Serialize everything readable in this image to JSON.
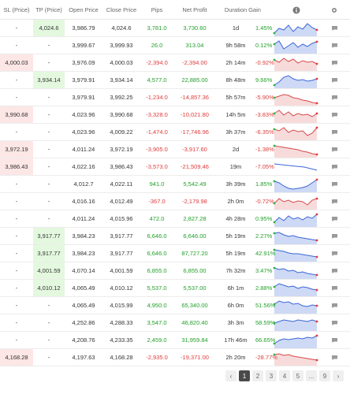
{
  "header": {
    "sl": "SL (Price)",
    "tp": "TP (Price)",
    "open": "Open Price",
    "close": "Close Price",
    "pips": "Pips",
    "net_profit": "Net Profit",
    "duration": "Duration",
    "gain": "Gain",
    "info_icon": "info-icon",
    "settings_icon": "gear-icon"
  },
  "colors": {
    "positive": "#22a02a",
    "negative": "#e03b3b",
    "sl_highlight": "#fde6e6",
    "tp_highlight": "#e3f8de",
    "spark_up": "#3b66d6",
    "spark_down": "#d64a4a"
  },
  "rows": [
    {
      "sl": "-",
      "tp": "4,024.6",
      "open": "3,986.79",
      "close": "4,024.6",
      "pips": "3,781.0",
      "np": "3,730.60",
      "dur": "1d",
      "gain": "1.45%",
      "positive": true,
      "tp_hl": true,
      "sl_hl": false,
      "spark": [
        4,
        10,
        8,
        14,
        6,
        12,
        9,
        16,
        11,
        8
      ]
    },
    {
      "sl": "-",
      "tp": "-",
      "open": "3,999.67",
      "close": "3,999.93",
      "pips": "26.0",
      "np": "313.04",
      "dur": "9h 58m",
      "gain": "0.12%",
      "positive": true,
      "tp_hl": false,
      "sl_hl": false,
      "spark": [
        12,
        16,
        6,
        10,
        14,
        8,
        12,
        9,
        13,
        15
      ]
    },
    {
      "sl": "4,000.03",
      "tp": "-",
      "open": "3,976.09",
      "close": "4,000.03",
      "pips": "-2,394.0",
      "np": "-2,394.00",
      "dur": "2h 14m",
      "gain": "-0.92%",
      "positive": false,
      "tp_hl": false,
      "sl_hl": true,
      "spark": [
        14,
        11,
        16,
        12,
        15,
        10,
        13,
        11,
        12,
        9
      ]
    },
    {
      "sl": "-",
      "tp": "3,934.14",
      "open": "3,979.91",
      "close": "3,934.14",
      "pips": "4,577.0",
      "np": "22,885.00",
      "dur": "8h 48m",
      "gain": "9.66%",
      "positive": true,
      "tp_hl": true,
      "sl_hl": false,
      "spark": [
        4,
        8,
        14,
        16,
        12,
        10,
        11,
        9,
        10,
        12
      ]
    },
    {
      "sl": "-",
      "tp": "-",
      "open": "3,979.91",
      "close": "3,992.25",
      "pips": "-1,234.0",
      "np": "-14,857.36",
      "dur": "5h 57m",
      "gain": "-5.90%",
      "positive": false,
      "tp_hl": false,
      "sl_hl": false,
      "spark": [
        10,
        12,
        14,
        13,
        10,
        9,
        7,
        6,
        4,
        3
      ]
    },
    {
      "sl": "3,990.68",
      "tp": "-",
      "open": "4,023.96",
      "close": "3,990.68",
      "pips": "-3,328.0",
      "np": "-10,021.80",
      "dur": "14h 5m",
      "gain": "-3.83%",
      "positive": false,
      "tp_hl": false,
      "sl_hl": true,
      "spark": [
        12,
        16,
        10,
        14,
        9,
        12,
        10,
        11,
        8,
        12
      ]
    },
    {
      "sl": "-",
      "tp": "-",
      "open": "4,023.96",
      "close": "4,009.22",
      "pips": "-1,474.0",
      "np": "-17,746.96",
      "dur": "3h 37m",
      "gain": "-6.35%",
      "positive": false,
      "tp_hl": false,
      "sl_hl": false,
      "spark": [
        14,
        12,
        16,
        10,
        13,
        11,
        12,
        6,
        9,
        16
      ]
    },
    {
      "sl": "3,972.19",
      "tp": "-",
      "open": "4,011.24",
      "close": "3,972.19",
      "pips": "-3,905.0",
      "np": "-3,917.60",
      "dur": "2d",
      "gain": "-1.38%",
      "positive": false,
      "tp_hl": false,
      "sl_hl": true,
      "spark": [
        15,
        14,
        13,
        12,
        11,
        10,
        8,
        7,
        5,
        4
      ]
    },
    {
      "sl": "3,986.43",
      "tp": "-",
      "open": "4,022.16",
      "close": "3,986.43",
      "pips": "-3,573.0",
      "np": "-21,509.46",
      "dur": "19m",
      "gain": "-7.05%",
      "positive": false,
      "tp_hl": false,
      "sl_hl": true,
      "spark": []
    },
    {
      "sl": "-",
      "tp": "-",
      "open": "4,012.7",
      "close": "4,022.11",
      "pips": "941.0",
      "np": "5,542.49",
      "dur": "3h 39m",
      "gain": "1.85%",
      "positive": true,
      "tp_hl": false,
      "sl_hl": false,
      "spark": [
        14,
        12,
        8,
        5,
        4,
        5,
        6,
        8,
        12,
        16
      ]
    },
    {
      "sl": "-",
      "tp": "-",
      "open": "4,016.16",
      "close": "4,012.49",
      "pips": "-367.0",
      "np": "-2,179.98",
      "dur": "2h 0m",
      "gain": "-0.72%",
      "positive": false,
      "tp_hl": false,
      "sl_hl": false,
      "spark": [
        8,
        14,
        10,
        12,
        9,
        11,
        10,
        6,
        12,
        14
      ]
    },
    {
      "sl": "-",
      "tp": "-",
      "open": "4,011.24",
      "close": "4,015.96",
      "pips": "472.0",
      "np": "2,827.28",
      "dur": "4h 28m",
      "gain": "0.95%",
      "positive": true,
      "tp_hl": false,
      "sl_hl": false,
      "spark": [
        6,
        12,
        8,
        14,
        10,
        12,
        9,
        13,
        11,
        16
      ]
    },
    {
      "sl": "-",
      "tp": "3,917.77",
      "open": "3,984.23",
      "close": "3,917.77",
      "pips": "6,646.0",
      "np": "6,646.00",
      "dur": "5h 19m",
      "gain": "2.27%",
      "positive": true,
      "tp_hl": true,
      "sl_hl": false,
      "spark": [
        14,
        15,
        12,
        10,
        11,
        9,
        8,
        7,
        6,
        5
      ]
    },
    {
      "sl": "-",
      "tp": "3,917.77",
      "open": "3,984.23",
      "close": "3,917.77",
      "pips": "6,646.0",
      "np": "87,727.20",
      "dur": "5h 19m",
      "gain": "42.91%",
      "positive": true,
      "tp_hl": true,
      "sl_hl": false,
      "spark": [
        15,
        14,
        13,
        11,
        10,
        10,
        9,
        8,
        7,
        6
      ]
    },
    {
      "sl": "-",
      "tp": "4,001.59",
      "open": "4,070.14",
      "close": "4,001.59",
      "pips": "6,855.0",
      "np": "6,855.00",
      "dur": "7h 32m",
      "gain": "3.47%",
      "positive": true,
      "tp_hl": true,
      "sl_hl": false,
      "spark": [
        14,
        12,
        13,
        10,
        11,
        8,
        9,
        7,
        6,
        5
      ]
    },
    {
      "sl": "-",
      "tp": "4,010.12",
      "open": "4,065.49",
      "close": "4,010.12",
      "pips": "5,537.0",
      "np": "5,537.00",
      "dur": "6h 1m",
      "gain": "2.88%",
      "positive": true,
      "tp_hl": true,
      "sl_hl": false,
      "spark": [
        12,
        16,
        14,
        12,
        13,
        10,
        12,
        11,
        9,
        8
      ]
    },
    {
      "sl": "-",
      "tp": "-",
      "open": "4,065.49",
      "close": "4,015.99",
      "pips": "4,950.0",
      "np": "65,340.00",
      "dur": "6h 0m",
      "gain": "51.56%",
      "positive": true,
      "tp_hl": false,
      "sl_hl": false,
      "spark": [
        12,
        16,
        14,
        15,
        12,
        13,
        10,
        9,
        11,
        10
      ]
    },
    {
      "sl": "-",
      "tp": "-",
      "open": "4,252.86",
      "close": "4,288.33",
      "pips": "3,547.0",
      "np": "46,820.40",
      "dur": "3h 3m",
      "gain": "58.59%",
      "positive": true,
      "tp_hl": false,
      "sl_hl": false,
      "spark": [
        10,
        12,
        14,
        13,
        12,
        14,
        13,
        12,
        14,
        12
      ]
    },
    {
      "sl": "-",
      "tp": "-",
      "open": "4,208.76",
      "close": "4,233.35",
      "pips": "2,459.0",
      "np": "31,959.84",
      "dur": "17h 46m",
      "gain": "66.65%",
      "positive": true,
      "tp_hl": false,
      "sl_hl": false,
      "spark": [
        6,
        10,
        12,
        11,
        12,
        13,
        12,
        14,
        13,
        16
      ]
    },
    {
      "sl": "4,168.28",
      "tp": "-",
      "open": "4,197.63",
      "close": "4,168.28",
      "pips": "-2,935.0",
      "np": "-19,371.00",
      "dur": "2h 20m",
      "gain": "-28.77%",
      "positive": false,
      "tp_hl": false,
      "sl_hl": true,
      "spark": [
        14,
        15,
        13,
        14,
        12,
        11,
        10,
        9,
        8,
        7
      ]
    }
  ],
  "pagination": {
    "prev": "‹",
    "pages": [
      "1",
      "2",
      "3",
      "4",
      "5",
      "...",
      "9"
    ],
    "active": "1",
    "next": "›"
  }
}
